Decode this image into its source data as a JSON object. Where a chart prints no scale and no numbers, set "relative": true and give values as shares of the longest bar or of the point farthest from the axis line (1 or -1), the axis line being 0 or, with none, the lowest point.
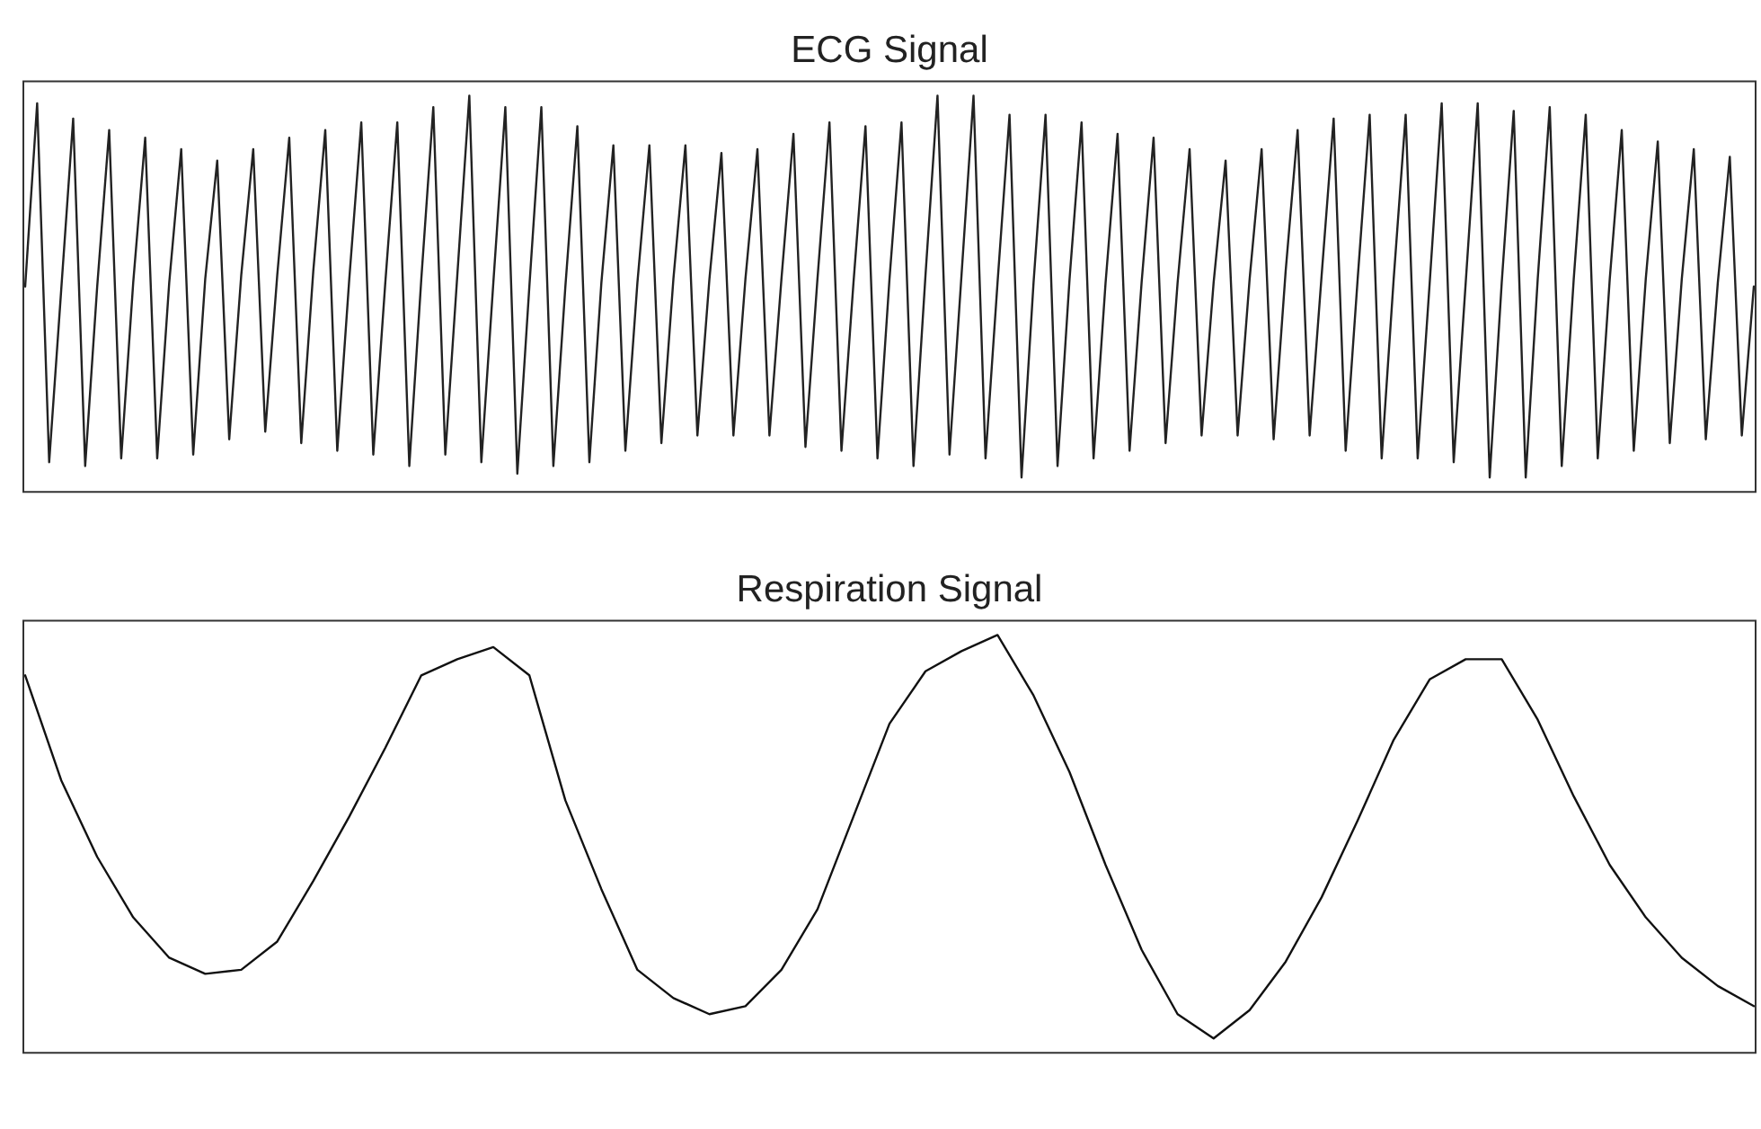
{
  "chart_data": [
    {
      "type": "line",
      "title": "ECG Signal",
      "relative": true,
      "grid": false,
      "legend": false,
      "marker": "none",
      "line_style": "solid",
      "categories": [
        null,
        null,
        null,
        null,
        null,
        null,
        null,
        null,
        null,
        null,
        null,
        null,
        null,
        null,
        null,
        null,
        null,
        null,
        null,
        null,
        null,
        null,
        null,
        null,
        null,
        null,
        null,
        null,
        null,
        null,
        null,
        null,
        null,
        null,
        null,
        null,
        null,
        null,
        null,
        null,
        null,
        null,
        null,
        null,
        null,
        null,
        null,
        null,
        null,
        null,
        null,
        null,
        null,
        null,
        null,
        null,
        null,
        null,
        null,
        null,
        null,
        null,
        null,
        null,
        null,
        null,
        null,
        null,
        null,
        null,
        null,
        null,
        null,
        null,
        null,
        null,
        null,
        null,
        null,
        null,
        null,
        null,
        null,
        null,
        null,
        null,
        null,
        null,
        null,
        null,
        null,
        null,
        null,
        null,
        null,
        null,
        null,
        null,
        null,
        null,
        null,
        null,
        null,
        null,
        null,
        null,
        null,
        null,
        null,
        null,
        null,
        null,
        null,
        null,
        null,
        null,
        null,
        null,
        null,
        null,
        null,
        null,
        null,
        null,
        null,
        null,
        null,
        null,
        null,
        null,
        null,
        null,
        null,
        null,
        null,
        null,
        null,
        null,
        null,
        null,
        null,
        null,
        null,
        null,
        null
      ],
      "series": [
        {
          "color": "#222222",
          "values": [
            0.5,
            0.98,
            0.04,
            0.49,
            0.94,
            0.03,
            0.5,
            0.91,
            0.05,
            0.51,
            0.89,
            0.05,
            0.51,
            0.86,
            0.06,
            0.52,
            0.83,
            0.1,
            0.53,
            0.86,
            0.12,
            0.53,
            0.89,
            0.09,
            0.54,
            0.91,
            0.07,
            0.52,
            0.93,
            0.06,
            0.51,
            0.93,
            0.03,
            0.52,
            0.97,
            0.06,
            0.53,
            1.0,
            0.04,
            0.51,
            0.97,
            0.01,
            0.5,
            0.97,
            0.03,
            0.5,
            0.92,
            0.04,
            0.51,
            0.87,
            0.07,
            0.51,
            0.87,
            0.09,
            0.52,
            0.87,
            0.11,
            0.52,
            0.85,
            0.11,
            0.52,
            0.86,
            0.11,
            0.52,
            0.9,
            0.08,
            0.52,
            0.93,
            0.07,
            0.51,
            0.92,
            0.05,
            0.52,
            0.93,
            0.03,
            0.53,
            1.0,
            0.06,
            0.53,
            1.0,
            0.05,
            0.51,
            0.95,
            0,
            0.51,
            0.95,
            0.03,
            0.52,
            0.93,
            0.05,
            0.51,
            0.9,
            0.07,
            0.51,
            0.89,
            0.09,
            0.51,
            0.86,
            0.11,
            0.51,
            0.83,
            0.11,
            0.52,
            0.86,
            0.1,
            0.54,
            0.91,
            0.11,
            0.53,
            0.94,
            0.07,
            0.52,
            0.95,
            0.05,
            0.52,
            0.95,
            0.05,
            0.51,
            0.98,
            0.04,
            0.51,
            0.98,
            0,
            0.51,
            0.96,
            0,
            0.52,
            0.97,
            0.03,
            0.52,
            0.95,
            0.05,
            0.52,
            0.91,
            0.07,
            0.52,
            0.88,
            0.09,
            0.52,
            0.86,
            0.1,
            0.51,
            0.84,
            0.11,
            0.5
          ]
        }
      ]
    },
    {
      "type": "line",
      "title": "Respiration Signal",
      "relative": true,
      "grid": false,
      "legend": false,
      "marker": "none",
      "line_style": "solid",
      "categories": [
        null,
        null,
        null,
        null,
        null,
        null,
        null,
        null,
        null,
        null,
        null,
        null,
        null,
        null,
        null,
        null,
        null,
        null,
        null,
        null,
        null,
        null,
        null,
        null,
        null,
        null,
        null,
        null,
        null,
        null,
        null,
        null,
        null,
        null,
        null,
        null,
        null,
        null,
        null,
        null,
        null,
        null,
        null,
        null,
        null,
        null,
        null,
        null,
        null
      ],
      "series": [
        {
          "color": "#111111",
          "values": [
            0.9,
            0.64,
            0.45,
            0.3,
            0.2,
            0.16,
            0.17,
            0.24,
            0.39,
            0.55,
            0.72,
            0.9,
            0.94,
            0.97,
            0.9,
            0.59,
            0.37,
            0.17,
            0.1,
            0.06,
            0.08,
            0.17,
            0.32,
            0.55,
            0.78,
            0.91,
            0.96,
            1.0,
            0.85,
            0.66,
            0.43,
            0.22,
            0.06,
            0,
            0.07,
            0.19,
            0.35,
            0.54,
            0.74,
            0.89,
            0.94,
            0.94,
            0.79,
            0.6,
            0.43,
            0.3,
            0.2,
            0.13,
            0.08
          ]
        }
      ]
    }
  ]
}
